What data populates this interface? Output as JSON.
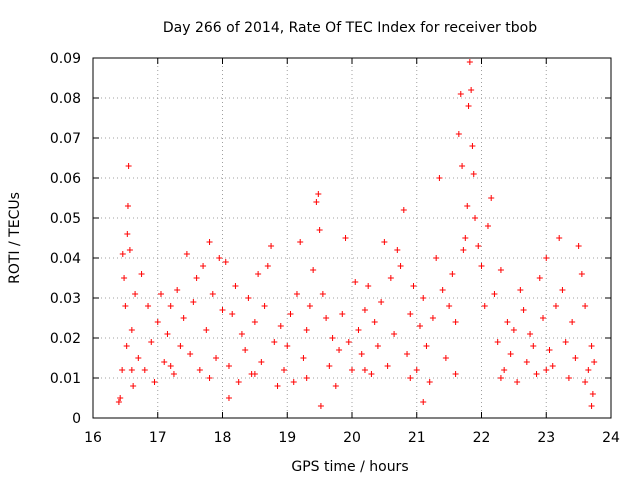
{
  "chart_data": {
    "type": "scatter",
    "title": "Day 266 of 2014, Rate Of TEC Index for receiver tbob",
    "xlabel": "GPS time / hours",
    "ylabel": "ROTI / TECUs",
    "xlim": [
      16,
      24
    ],
    "ylim": [
      0,
      0.09
    ],
    "x_ticks": [
      "16",
      "17",
      "18",
      "19",
      "20",
      "21",
      "22",
      "23",
      "24"
    ],
    "y_ticks": [
      "0",
      "0.01",
      "0.02",
      "0.03",
      "0.04",
      "0.05",
      "0.06",
      "0.07",
      "0.08",
      "0.09"
    ],
    "grid": true,
    "marker": "+",
    "series": [
      {
        "name": "ROTI",
        "color": "#ff0000",
        "points": [
          [
            16.42,
            0.005
          ],
          [
            16.45,
            0.012
          ],
          [
            16.46,
            0.041
          ],
          [
            16.48,
            0.035
          ],
          [
            16.5,
            0.028
          ],
          [
            16.52,
            0.018
          ],
          [
            16.53,
            0.046
          ],
          [
            16.54,
            0.053
          ],
          [
            16.55,
            0.063
          ],
          [
            16.57,
            0.042
          ],
          [
            16.6,
            0.022
          ],
          [
            16.62,
            0.008
          ],
          [
            16.65,
            0.031
          ],
          [
            16.7,
            0.015
          ],
          [
            16.75,
            0.036
          ],
          [
            16.8,
            0.012
          ],
          [
            16.85,
            0.028
          ],
          [
            16.9,
            0.019
          ],
          [
            16.95,
            0.009
          ],
          [
            17.0,
            0.024
          ],
          [
            17.05,
            0.031
          ],
          [
            17.1,
            0.014
          ],
          [
            17.15,
            0.021
          ],
          [
            17.2,
            0.028
          ],
          [
            17.25,
            0.011
          ],
          [
            17.3,
            0.032
          ],
          [
            17.35,
            0.018
          ],
          [
            17.4,
            0.025
          ],
          [
            17.45,
            0.041
          ],
          [
            17.5,
            0.016
          ],
          [
            17.55,
            0.029
          ],
          [
            17.6,
            0.035
          ],
          [
            17.65,
            0.012
          ],
          [
            17.7,
            0.038
          ],
          [
            17.75,
            0.022
          ],
          [
            17.8,
            0.044
          ],
          [
            17.85,
            0.031
          ],
          [
            17.9,
            0.015
          ],
          [
            17.95,
            0.04
          ],
          [
            18.0,
            0.027
          ],
          [
            18.05,
            0.039
          ],
          [
            18.1,
            0.013
          ],
          [
            18.15,
            0.026
          ],
          [
            18.2,
            0.033
          ],
          [
            18.25,
            0.009
          ],
          [
            18.3,
            0.021
          ],
          [
            18.35,
            0.017
          ],
          [
            18.4,
            0.03
          ],
          [
            18.45,
            0.011
          ],
          [
            18.5,
            0.024
          ],
          [
            18.55,
            0.036
          ],
          [
            18.6,
            0.014
          ],
          [
            18.65,
            0.028
          ],
          [
            18.7,
            0.038
          ],
          [
            18.75,
            0.043
          ],
          [
            18.8,
            0.019
          ],
          [
            18.85,
            0.008
          ],
          [
            18.9,
            0.023
          ],
          [
            18.95,
            0.012
          ],
          [
            19.0,
            0.018
          ],
          [
            19.05,
            0.026
          ],
          [
            19.1,
            0.009
          ],
          [
            19.15,
            0.031
          ],
          [
            19.2,
            0.044
          ],
          [
            19.25,
            0.015
          ],
          [
            19.3,
            0.022
          ],
          [
            19.35,
            0.028
          ],
          [
            19.4,
            0.037
          ],
          [
            19.45,
            0.054
          ],
          [
            19.48,
            0.056
          ],
          [
            19.5,
            0.047
          ],
          [
            19.55,
            0.031
          ],
          [
            19.6,
            0.025
          ],
          [
            19.65,
            0.013
          ],
          [
            19.7,
            0.02
          ],
          [
            19.75,
            0.008
          ],
          [
            19.8,
            0.017
          ],
          [
            19.85,
            0.026
          ],
          [
            19.9,
            0.045
          ],
          [
            19.95,
            0.019
          ],
          [
            20.0,
            0.012
          ],
          [
            20.05,
            0.034
          ],
          [
            20.1,
            0.022
          ],
          [
            20.15,
            0.016
          ],
          [
            20.2,
            0.027
          ],
          [
            20.25,
            0.033
          ],
          [
            20.3,
            0.011
          ],
          [
            20.35,
            0.024
          ],
          [
            20.4,
            0.018
          ],
          [
            20.45,
            0.029
          ],
          [
            20.5,
            0.044
          ],
          [
            20.55,
            0.013
          ],
          [
            20.6,
            0.035
          ],
          [
            20.65,
            0.021
          ],
          [
            20.7,
            0.042
          ],
          [
            20.75,
            0.038
          ],
          [
            20.8,
            0.052
          ],
          [
            20.85,
            0.016
          ],
          [
            20.9,
            0.026
          ],
          [
            20.95,
            0.033
          ],
          [
            21.0,
            0.012
          ],
          [
            21.05,
            0.023
          ],
          [
            21.1,
            0.03
          ],
          [
            21.15,
            0.018
          ],
          [
            21.2,
            0.009
          ],
          [
            21.25,
            0.025
          ],
          [
            21.3,
            0.04
          ],
          [
            21.35,
            0.06
          ],
          [
            21.4,
            0.032
          ],
          [
            21.45,
            0.015
          ],
          [
            21.5,
            0.028
          ],
          [
            21.55,
            0.036
          ],
          [
            21.6,
            0.024
          ],
          [
            21.65,
            0.071
          ],
          [
            21.68,
            0.081
          ],
          [
            21.7,
            0.063
          ],
          [
            21.72,
            0.042
          ],
          [
            21.75,
            0.045
          ],
          [
            21.78,
            0.053
          ],
          [
            21.8,
            0.078
          ],
          [
            21.82,
            0.089
          ],
          [
            21.84,
            0.082
          ],
          [
            21.86,
            0.068
          ],
          [
            21.88,
            0.061
          ],
          [
            21.9,
            0.05
          ],
          [
            21.95,
            0.043
          ],
          [
            22.0,
            0.038
          ],
          [
            22.05,
            0.028
          ],
          [
            22.1,
            0.048
          ],
          [
            22.15,
            0.055
          ],
          [
            22.2,
            0.031
          ],
          [
            22.25,
            0.019
          ],
          [
            22.3,
            0.037
          ],
          [
            22.35,
            0.012
          ],
          [
            22.4,
            0.024
          ],
          [
            22.45,
            0.016
          ],
          [
            22.5,
            0.022
          ],
          [
            22.55,
            0.009
          ],
          [
            22.6,
            0.032
          ],
          [
            22.65,
            0.027
          ],
          [
            22.7,
            0.014
          ],
          [
            22.75,
            0.021
          ],
          [
            22.8,
            0.018
          ],
          [
            22.85,
            0.011
          ],
          [
            22.9,
            0.035
          ],
          [
            22.95,
            0.025
          ],
          [
            23.0,
            0.04
          ],
          [
            23.05,
            0.017
          ],
          [
            23.1,
            0.013
          ],
          [
            23.15,
            0.028
          ],
          [
            23.2,
            0.045
          ],
          [
            23.25,
            0.032
          ],
          [
            23.3,
            0.019
          ],
          [
            23.35,
            0.01
          ],
          [
            23.4,
            0.024
          ],
          [
            23.45,
            0.015
          ],
          [
            23.5,
            0.043
          ],
          [
            23.55,
            0.036
          ],
          [
            23.6,
            0.028
          ],
          [
            23.65,
            0.012
          ],
          [
            23.7,
            0.018
          ],
          [
            23.72,
            0.006
          ],
          [
            23.74,
            0.014
          ],
          [
            16.6,
            0.012
          ],
          [
            17.2,
            0.013
          ],
          [
            17.8,
            0.01
          ],
          [
            18.5,
            0.011
          ],
          [
            19.3,
            0.01
          ],
          [
            20.2,
            0.012
          ],
          [
            20.9,
            0.01
          ],
          [
            21.6,
            0.011
          ],
          [
            22.3,
            0.01
          ],
          [
            23.0,
            0.012
          ],
          [
            23.6,
            0.009
          ],
          [
            19.52,
            0.003
          ],
          [
            16.4,
            0.004
          ],
          [
            23.7,
            0.003
          ],
          [
            18.1,
            0.005
          ],
          [
            21.1,
            0.004
          ]
        ]
      }
    ]
  }
}
